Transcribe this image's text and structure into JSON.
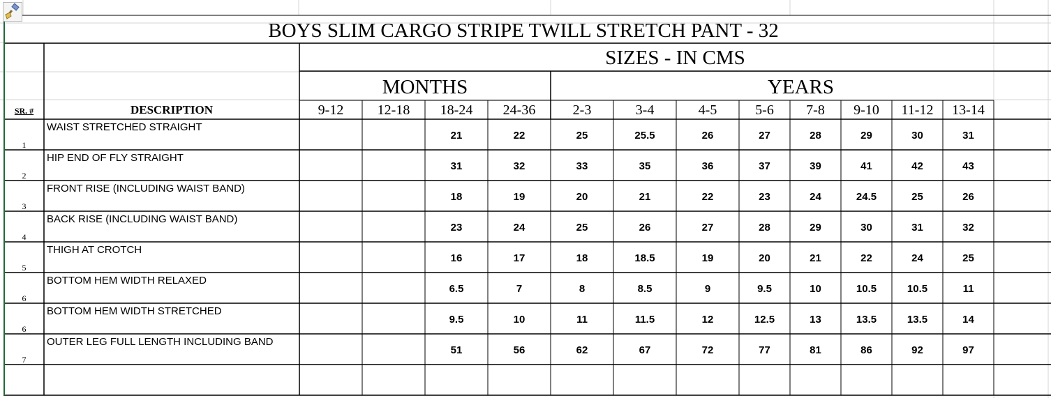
{
  "sheet": {
    "title": "BOYS SLIM CARGO STRIPE TWILL STRETCH PANT - 32",
    "sizes_header": "SIZES - IN CMS",
    "months_label": "MONTHS",
    "years_label": "YEARS",
    "sr_header": "SR. #",
    "description_header": "DESCRIPTION",
    "size_columns": [
      "9-12",
      "12-18",
      "18-24",
      "24-36",
      "2-3",
      "3-4",
      "4-5",
      "5-6",
      "7-8",
      "9-10",
      "11-12",
      "13-14"
    ],
    "rows": [
      {
        "sr": "1",
        "desc": "WAIST STRETCHED STRAIGHT",
        "values": [
          "",
          "",
          "21",
          "22",
          "25",
          "25.5",
          "26",
          "27",
          "28",
          "29",
          "30",
          "31"
        ]
      },
      {
        "sr": "2",
        "desc": "HIP END OF FLY STRAIGHT",
        "values": [
          "",
          "",
          "31",
          "32",
          "33",
          "35",
          "36",
          "37",
          "39",
          "41",
          "42",
          "43"
        ]
      },
      {
        "sr": "3",
        "desc": "FRONT RISE (INCLUDING WAIST BAND)",
        "values": [
          "",
          "",
          "18",
          "19",
          "20",
          "21",
          "22",
          "23",
          "24",
          "24.5",
          "25",
          "26"
        ]
      },
      {
        "sr": "4",
        "desc": "BACK RISE (INCLUDING WAIST BAND)",
        "values": [
          "",
          "",
          "23",
          "24",
          "25",
          "26",
          "27",
          "28",
          "29",
          "30",
          "31",
          "32"
        ]
      },
      {
        "sr": "5",
        "desc": "THIGH AT CROTCH",
        "values": [
          "",
          "",
          "16",
          "17",
          "18",
          "18.5",
          "19",
          "20",
          "21",
          "22",
          "24",
          "25"
        ]
      },
      {
        "sr": "6",
        "desc": "BOTTOM HEM WIDTH RELAXED",
        "values": [
          "",
          "",
          "6.5",
          "7",
          "8",
          "8.5",
          "9",
          "9.5",
          "10",
          "10.5",
          "10.5",
          "11"
        ]
      },
      {
        "sr": "6",
        "desc": "BOTTOM HEM WIDTH STRETCHED",
        "values": [
          "",
          "",
          "9.5",
          "10",
          "11",
          "11.5",
          "12",
          "12.5",
          "13",
          "13.5",
          "13.5",
          "14"
        ]
      },
      {
        "sr": "7",
        "desc": "OUTER LEG FULL LENGTH INCLUDING BAND",
        "values": [
          "",
          "",
          "51",
          "56",
          "62",
          "67",
          "72",
          "77",
          "81",
          "86",
          "92",
          "97"
        ]
      }
    ]
  },
  "toolbar": {
    "icon": "format-painter-icon"
  }
}
